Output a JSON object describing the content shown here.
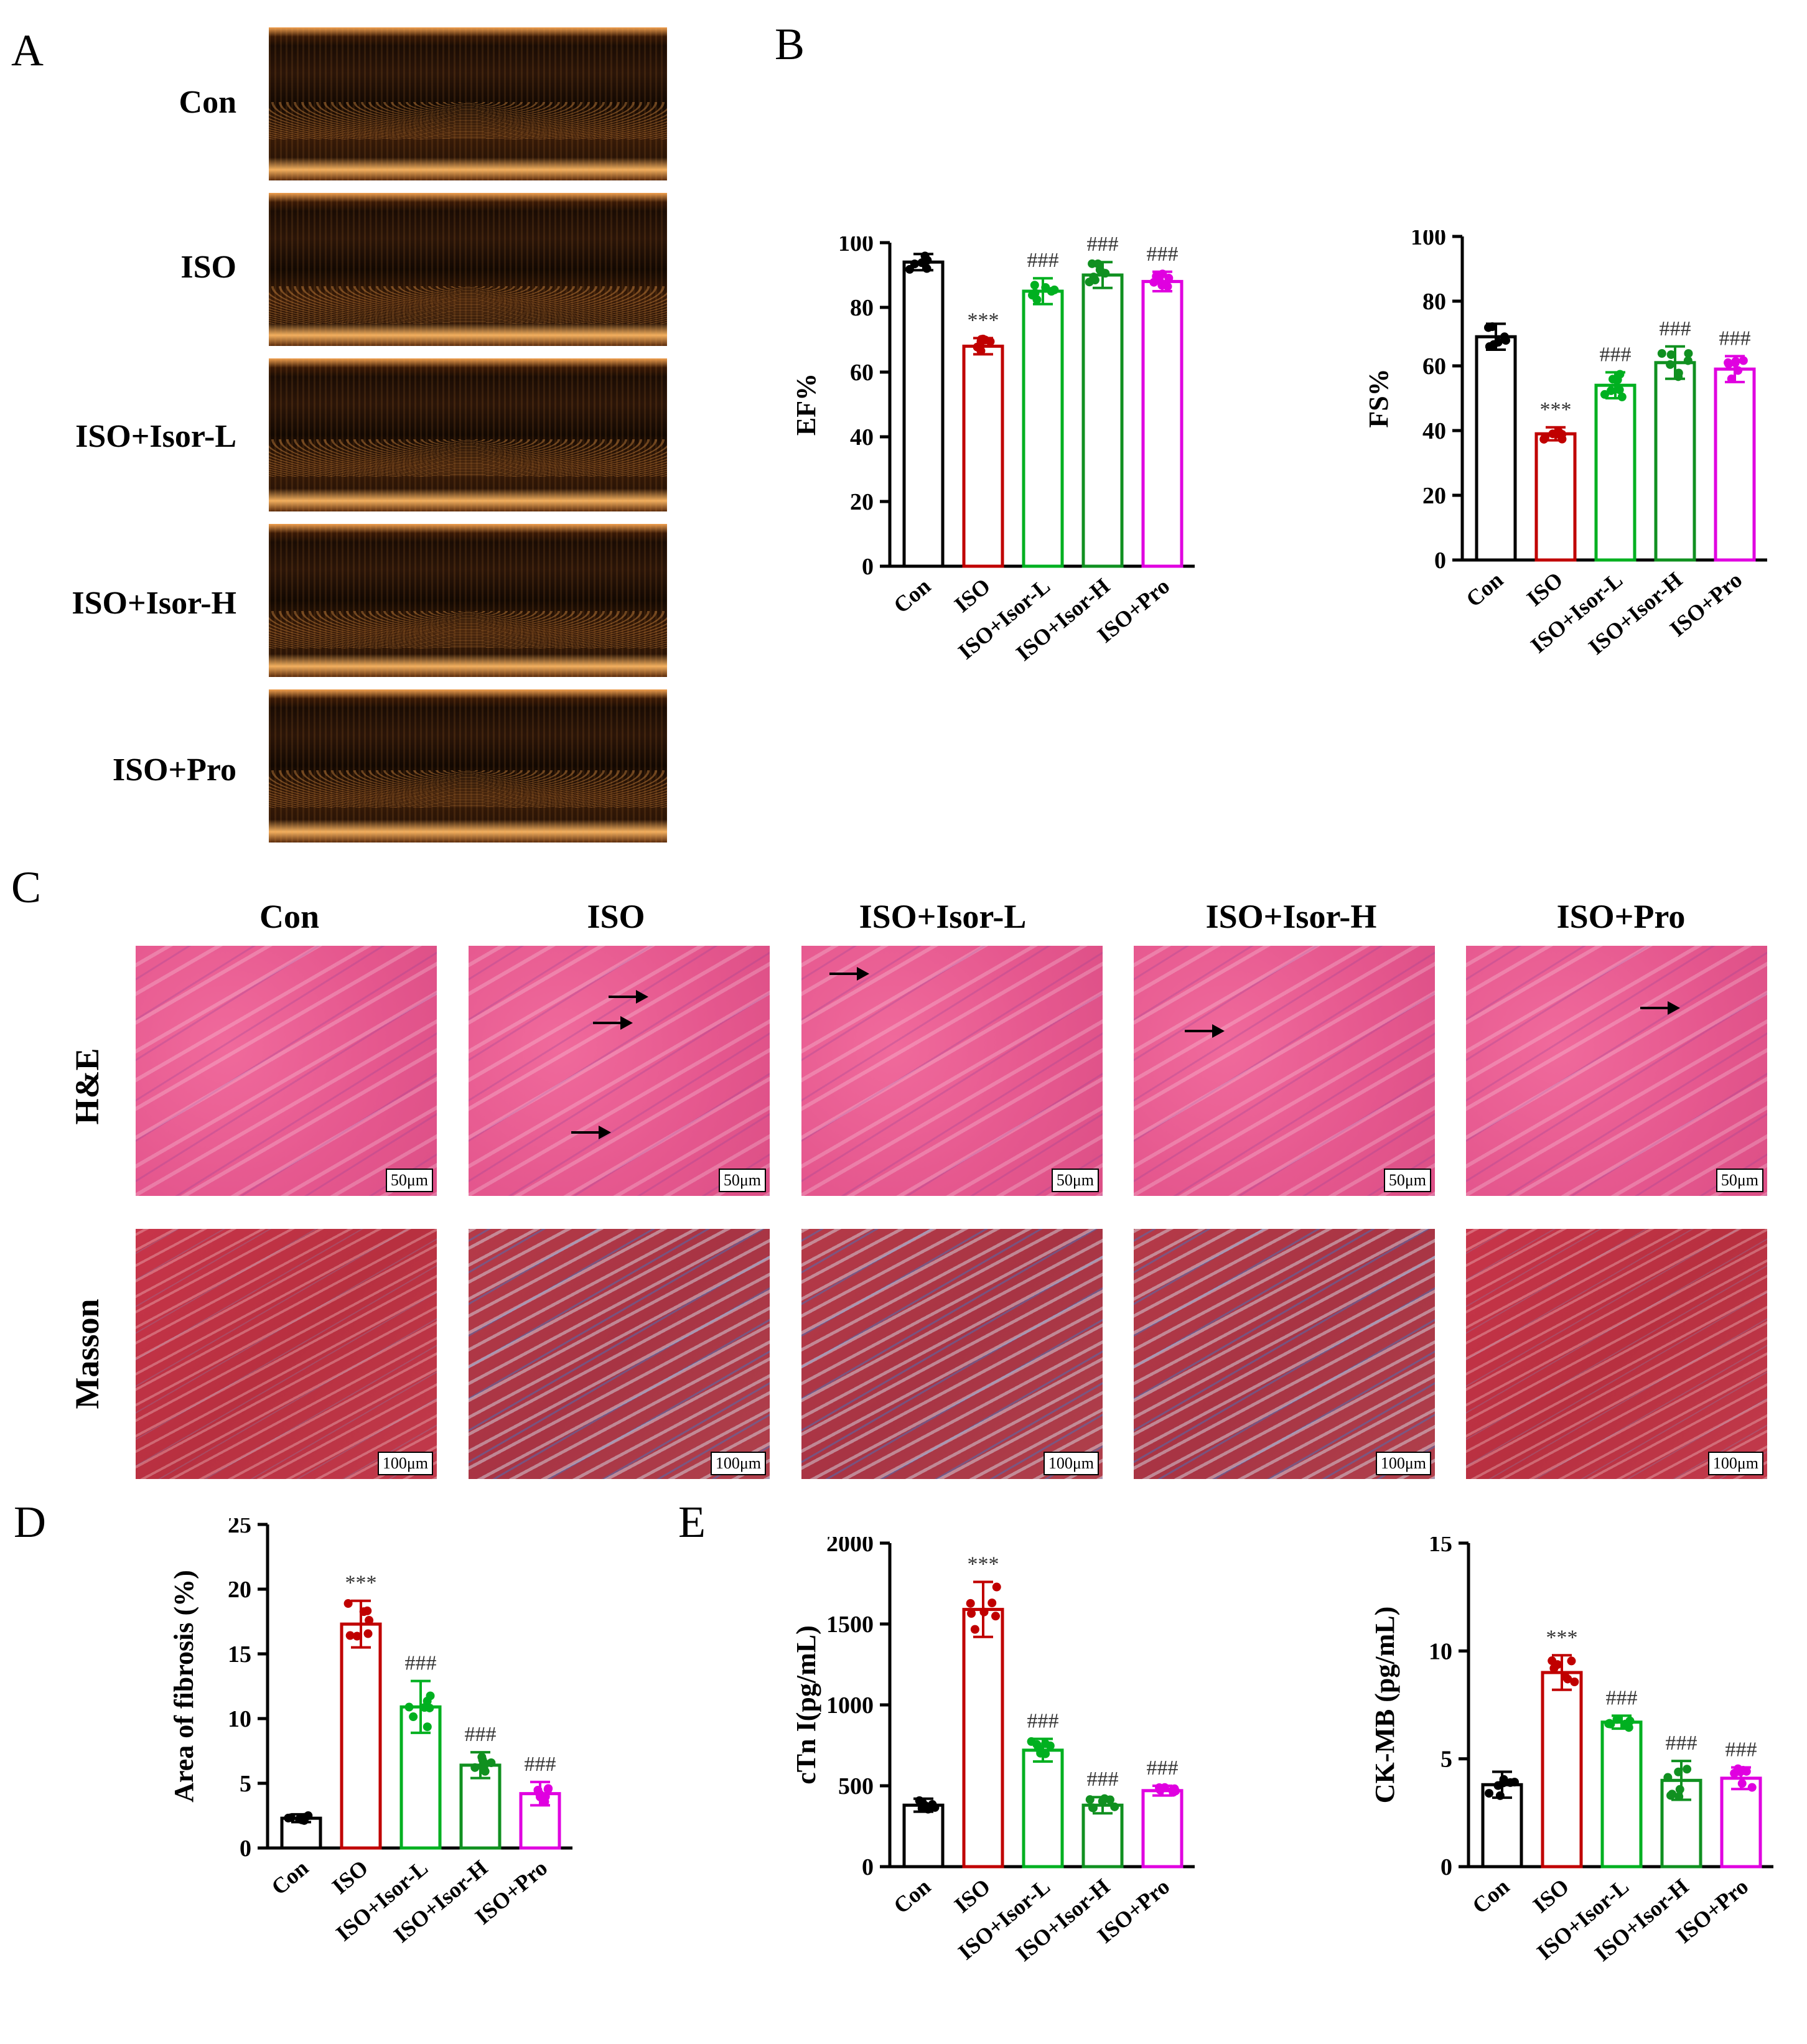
{
  "panels": {
    "a": "A",
    "b": "B",
    "c": "C",
    "d": "D",
    "e": "E"
  },
  "echo_labels": [
    "Con",
    "ISO",
    "ISO+Isor-L",
    "ISO+Isor-H",
    "ISO+Pro"
  ],
  "histology": {
    "columns": [
      "Con",
      "ISO",
      "ISO+Isor-L",
      "ISO+Isor-H",
      "ISO+Pro"
    ],
    "rows": [
      "H&E",
      "Masson"
    ],
    "scale_he": "50μm",
    "scale_masson": "100μm"
  },
  "colors": {
    "con": "#000000",
    "iso": "#c00000",
    "isor_l": "#00b020",
    "isor_h": "#109020",
    "pro": "#e000e0"
  },
  "chart_data": [
    {
      "id": "ef",
      "type": "bar",
      "categories": [
        "Con",
        "ISO",
        "ISO+Isor-L",
        "ISO+Isor-H",
        "ISO+Pro"
      ],
      "values": [
        94,
        68,
        85,
        90,
        88
      ],
      "errors": [
        2.5,
        2.5,
        4,
        4,
        3
      ],
      "ylabel": "EF%",
      "ylim": [
        0,
        100
      ],
      "yticks": [
        0,
        20,
        40,
        60,
        80,
        100
      ],
      "annotations": [
        "",
        "***",
        "###",
        "###",
        "###"
      ]
    },
    {
      "id": "fs",
      "type": "bar",
      "categories": [
        "Con",
        "ISO",
        "ISO+Isor-L",
        "ISO+Isor-H",
        "ISO+Pro"
      ],
      "values": [
        69,
        39,
        54,
        61,
        59
      ],
      "errors": [
        4,
        2,
        4,
        5,
        4
      ],
      "ylabel": "FS%",
      "ylim": [
        0,
        100
      ],
      "yticks": [
        0,
        20,
        40,
        60,
        80,
        100
      ],
      "annotations": [
        "",
        "***",
        "###",
        "###",
        "###"
      ]
    },
    {
      "id": "fib",
      "type": "bar",
      "categories": [
        "Con",
        "ISO",
        "ISO+Isor-L",
        "ISO+Isor-H",
        "ISO+Pro"
      ],
      "values": [
        2.3,
        17.3,
        10.9,
        6.4,
        4.2
      ],
      "errors": [
        0.3,
        1.8,
        2.0,
        1.0,
        0.9
      ],
      "ylabel": "Area of fibrosis (%)",
      "ylim": [
        0,
        25
      ],
      "yticks": [
        0,
        5,
        10,
        15,
        20,
        25
      ],
      "annotations": [
        "",
        "***",
        "###",
        "###",
        "###"
      ]
    },
    {
      "id": "ctni",
      "type": "bar",
      "categories": [
        "Con",
        "ISO",
        "ISO+Isor-L",
        "ISO+Isor-H",
        "ISO+Pro"
      ],
      "values": [
        380,
        1590,
        720,
        380,
        470
      ],
      "errors": [
        40,
        170,
        70,
        50,
        30
      ],
      "ylabel": "cTn I(pg/mL)",
      "ylim": [
        0,
        2000
      ],
      "yticks": [
        0,
        500,
        1000,
        1500,
        2000
      ],
      "annotations": [
        "",
        "***",
        "###",
        "###",
        "###"
      ]
    },
    {
      "id": "ckmb",
      "type": "bar",
      "categories": [
        "Con",
        "ISO",
        "ISO+Isor-L",
        "ISO+Isor-H",
        "ISO+Pro"
      ],
      "values": [
        3.8,
        9.0,
        6.7,
        4.0,
        4.1
      ],
      "errors": [
        0.6,
        0.8,
        0.3,
        0.9,
        0.5
      ],
      "ylabel": "CK-MB (pg/mL)",
      "ylim": [
        0,
        15
      ],
      "yticks": [
        0,
        5,
        10,
        15
      ],
      "annotations": [
        "",
        "***",
        "###",
        "###",
        "###"
      ]
    }
  ]
}
